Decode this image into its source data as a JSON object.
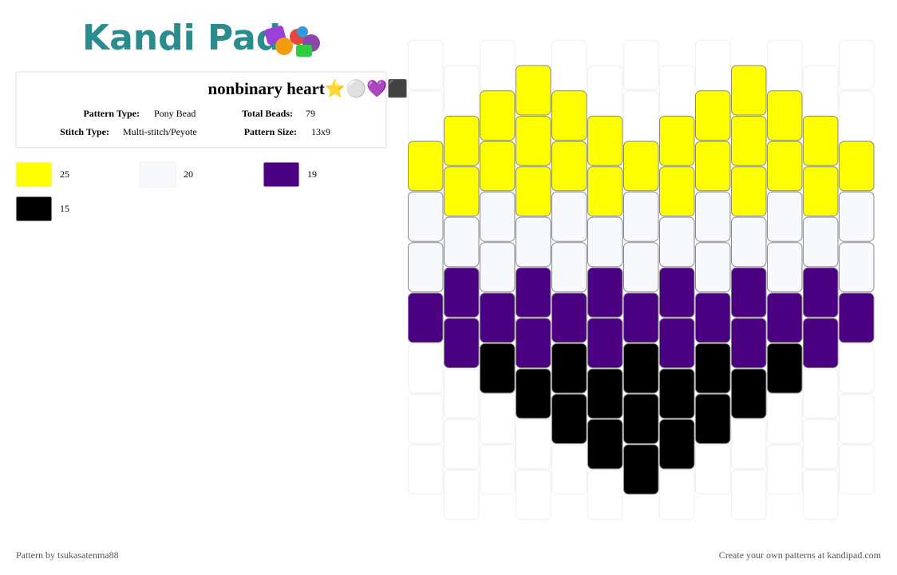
{
  "header": {
    "logo": "Kandi Pad"
  },
  "info": {
    "title": "nonbinary heart⭐⚪💜⬛",
    "fields": [
      {
        "label": "Pattern Type:",
        "value": "Pony Bead"
      },
      {
        "label": "Total Beads:",
        "value": "79"
      },
      {
        "label": "Stitch Type:",
        "value": "Multi-stitch/Peyote"
      },
      {
        "label": "Pattern Size:",
        "value": "13x9"
      }
    ]
  },
  "legend": [
    {
      "color": "#ffff00",
      "count": "25"
    },
    {
      "color": "#f8f9fc",
      "count": "20"
    },
    {
      "color": "#4b0082",
      "count": "19"
    },
    {
      "color": "#000000",
      "count": "15"
    }
  ],
  "pattern": {
    "columns": [
      [
        null,
        null,
        "#ffff00",
        "#f8f9fc",
        "#f8f9fc",
        "#4b0082",
        null,
        null,
        null
      ],
      [
        null,
        "#ffff00",
        "#ffff00",
        "#f8f9fc",
        "#4b0082",
        "#4b0082",
        null,
        null,
        null
      ],
      [
        null,
        "#ffff00",
        "#ffff00",
        "#f8f9fc",
        "#f8f9fc",
        "#4b0082",
        "#000000",
        null,
        null
      ],
      [
        "#ffff00",
        "#ffff00",
        "#ffff00",
        "#f8f9fc",
        "#4b0082",
        "#4b0082",
        "#000000",
        null,
        null
      ],
      [
        null,
        "#ffff00",
        "#ffff00",
        "#f8f9fc",
        "#f8f9fc",
        "#4b0082",
        "#000000",
        "#000000",
        null
      ],
      [
        null,
        "#ffff00",
        "#ffff00",
        "#f8f9fc",
        "#4b0082",
        "#4b0082",
        "#000000",
        "#000000",
        null
      ],
      [
        null,
        null,
        "#ffff00",
        "#f8f9fc",
        "#f8f9fc",
        "#4b0082",
        "#000000",
        "#000000",
        "#000000"
      ],
      [
        null,
        "#ffff00",
        "#ffff00",
        "#f8f9fc",
        "#4b0082",
        "#4b0082",
        "#000000",
        "#000000",
        null
      ],
      [
        null,
        "#ffff00",
        "#ffff00",
        "#f8f9fc",
        "#f8f9fc",
        "#4b0082",
        "#000000",
        "#000000",
        null
      ],
      [
        "#ffff00",
        "#ffff00",
        "#ffff00",
        "#f8f9fc",
        "#4b0082",
        "#4b0082",
        "#000000",
        null,
        null
      ],
      [
        null,
        "#ffff00",
        "#ffff00",
        "#f8f9fc",
        "#f8f9fc",
        "#4b0082",
        "#000000",
        null,
        null
      ],
      [
        null,
        "#ffff00",
        "#ffff00",
        "#f8f9fc",
        "#4b0082",
        "#4b0082",
        null,
        null,
        null
      ],
      [
        null,
        null,
        "#ffff00",
        "#f8f9fc",
        "#f8f9fc",
        "#4b0082",
        null,
        null,
        null
      ]
    ]
  },
  "footer": {
    "left": "Pattern by tsukasatenma88",
    "right": "Create your own patterns at kandipad.com"
  }
}
